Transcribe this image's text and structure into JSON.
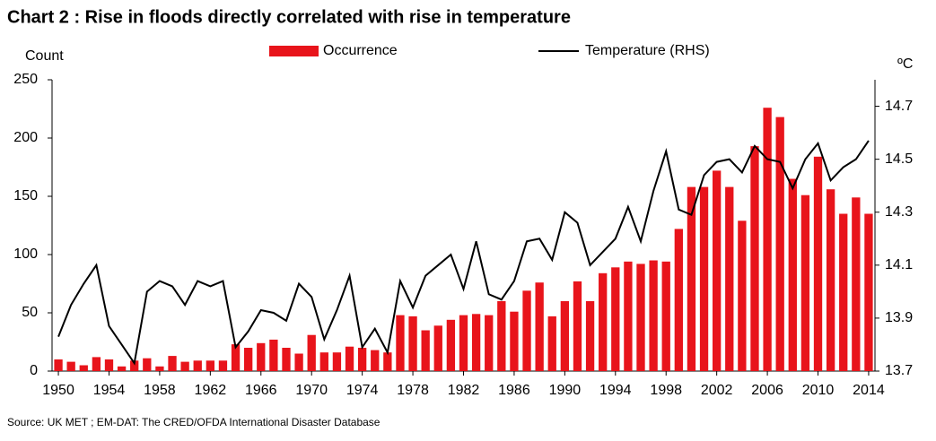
{
  "chart_data": {
    "type": "bar",
    "title": "Chart 2 : Rise in floods directly correlated with rise in temperature",
    "ylabel": "Count",
    "y2label": "ºC",
    "source": "Source: UK MET ; EM-DAT: The CRED/OFDA International Disaster Database",
    "x": [
      1950,
      1951,
      1952,
      1953,
      1954,
      1955,
      1956,
      1957,
      1958,
      1959,
      1960,
      1961,
      1962,
      1963,
      1964,
      1965,
      1966,
      1967,
      1968,
      1969,
      1970,
      1971,
      1972,
      1973,
      1974,
      1975,
      1976,
      1977,
      1978,
      1979,
      1980,
      1981,
      1982,
      1983,
      1984,
      1985,
      1986,
      1987,
      1988,
      1989,
      1990,
      1991,
      1992,
      1993,
      1994,
      1995,
      1996,
      1997,
      1998,
      1999,
      2000,
      2001,
      2002,
      2003,
      2004,
      2005,
      2006,
      2007,
      2008,
      2009,
      2010,
      2011,
      2012,
      2013,
      2014
    ],
    "xlim": [
      1949.5,
      2014.5
    ],
    "xticks": [
      1950,
      1954,
      1958,
      1962,
      1966,
      1970,
      1974,
      1978,
      1982,
      1986,
      1990,
      1994,
      1998,
      2002,
      2006,
      2010,
      2014
    ],
    "ylim": [
      0,
      250
    ],
    "yticks": [
      0,
      50,
      100,
      150,
      200,
      250
    ],
    "y2lim": [
      13.7,
      14.8
    ],
    "y2ticks": [
      13.7,
      13.9,
      14.1,
      14.3,
      14.5,
      14.7
    ],
    "grid": false,
    "series": [
      {
        "name": "Occurrence",
        "type": "bar",
        "color": "#e8141b",
        "values": [
          10,
          8,
          5,
          12,
          10,
          4,
          9,
          11,
          4,
          13,
          8,
          9,
          9,
          9,
          23,
          20,
          24,
          27,
          20,
          15,
          31,
          16,
          16,
          21,
          20,
          18,
          16,
          48,
          47,
          35,
          39,
          44,
          48,
          49,
          48,
          60,
          51,
          69,
          76,
          47,
          60,
          77,
          60,
          84,
          89,
          94,
          92,
          95,
          94,
          122,
          158,
          158,
          172,
          158,
          129,
          193,
          226,
          218,
          165,
          151,
          184,
          156,
          135,
          149,
          135
        ]
      },
      {
        "name": "Temperature (RHS)",
        "type": "line",
        "axis": "y2",
        "color": "#000000",
        "values": [
          13.83,
          13.95,
          14.03,
          14.1,
          13.87,
          13.8,
          13.73,
          14.0,
          14.04,
          14.02,
          13.95,
          14.04,
          14.02,
          14.04,
          13.79,
          13.85,
          13.93,
          13.92,
          13.89,
          14.03,
          13.98,
          13.82,
          13.93,
          14.06,
          13.79,
          13.86,
          13.77,
          14.04,
          13.94,
          14.06,
          14.1,
          14.14,
          14.01,
          14.19,
          13.99,
          13.97,
          14.04,
          14.19,
          14.2,
          14.12,
          14.3,
          14.26,
          14.1,
          14.15,
          14.2,
          14.32,
          14.19,
          14.38,
          14.53,
          14.31,
          14.29,
          14.44,
          14.49,
          14.5,
          14.45,
          14.55,
          14.5,
          14.49,
          14.39,
          14.5,
          14.56,
          14.42,
          14.47,
          14.5,
          14.57
        ]
      }
    ]
  }
}
